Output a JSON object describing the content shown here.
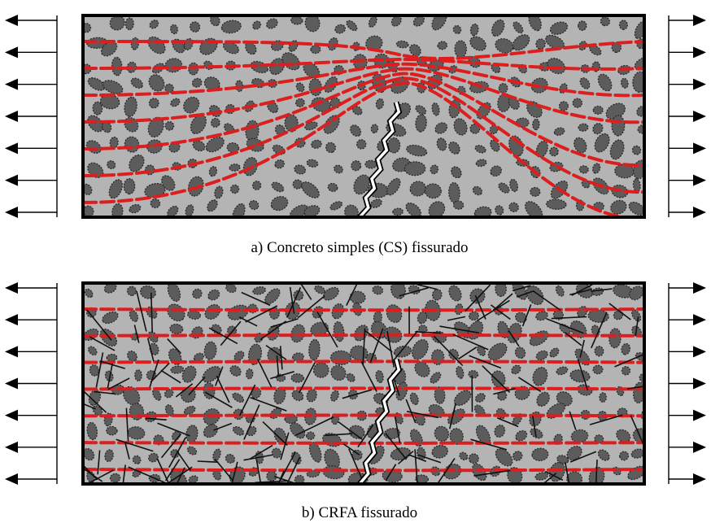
{
  "panels": [
    {
      "id": "a",
      "caption": "a) Concreto simples (CS) fissurado",
      "has_fibers": false,
      "stress_lines": "deviated-around-crack"
    },
    {
      "id": "b",
      "caption": "b) CRFA fissurado",
      "has_fibers": true,
      "stress_lines": "straight-bridging-crack"
    }
  ],
  "colors": {
    "concrete": "#b4b4b4",
    "aggregate": "#5c5c5c",
    "stress_line": "#dc1e1e",
    "fiber": "#111111",
    "crack": "#ffffff",
    "arrow": "#000000"
  },
  "icons": {
    "load_arrow_left": "arrow-left-icon",
    "load_arrow_right": "arrow-right-icon"
  }
}
